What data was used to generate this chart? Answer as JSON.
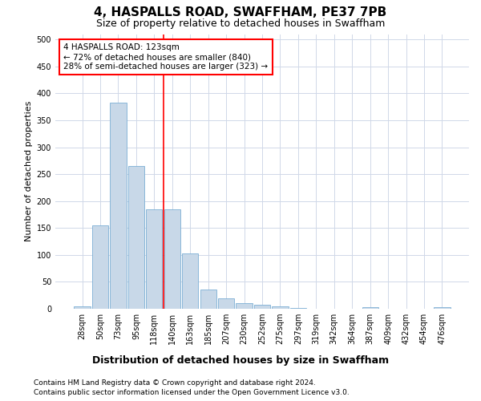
{
  "title": "4, HASPALLS ROAD, SWAFFHAM, PE37 7PB",
  "subtitle": "Size of property relative to detached houses in Swaffham",
  "xlabel": "Distribution of detached houses by size in Swaffham",
  "ylabel": "Number of detached properties",
  "categories": [
    "28sqm",
    "50sqm",
    "73sqm",
    "95sqm",
    "118sqm",
    "140sqm",
    "163sqm",
    "185sqm",
    "207sqm",
    "230sqm",
    "252sqm",
    "275sqm",
    "297sqm",
    "319sqm",
    "342sqm",
    "364sqm",
    "387sqm",
    "409sqm",
    "432sqm",
    "454sqm",
    "476sqm"
  ],
  "values": [
    5,
    155,
    383,
    265,
    185,
    185,
    103,
    35,
    19,
    10,
    8,
    4,
    2,
    0,
    0,
    0,
    3,
    0,
    0,
    0,
    3
  ],
  "bar_color": "#c8d8e8",
  "bar_edge_color": "#7bafd4",
  "ref_line_color": "red",
  "ref_line_x": 4.5,
  "annotation_line1": "4 HASPALLS ROAD: 123sqm",
  "annotation_line2": "← 72% of detached houses are smaller (840)",
  "annotation_line3": "28% of semi-detached houses are larger (323) →",
  "ylim": [
    0,
    510
  ],
  "yticks": [
    0,
    50,
    100,
    150,
    200,
    250,
    300,
    350,
    400,
    450,
    500
  ],
  "footer_line1": "Contains HM Land Registry data © Crown copyright and database right 2024.",
  "footer_line2": "Contains public sector information licensed under the Open Government Licence v3.0.",
  "bg_color": "#ffffff",
  "grid_color": "#d0d8e8",
  "title_fontsize": 11,
  "subtitle_fontsize": 9,
  "ylabel_fontsize": 8,
  "xlabel_fontsize": 9,
  "tick_fontsize": 7,
  "annotation_fontsize": 7.5,
  "footer_fontsize": 6.5
}
